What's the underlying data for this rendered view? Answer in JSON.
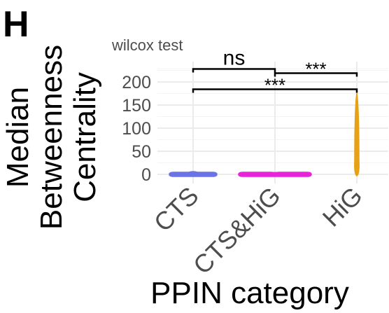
{
  "panel_label": "H",
  "chart_data": {
    "type": "violin",
    "subtitle": "wilcox test",
    "xlabel": "PPIN category",
    "ylabel_lines": [
      "Median",
      "Betweenness",
      "Centrality"
    ],
    "categories": [
      "CTS",
      "CTS&HiG",
      "HiG"
    ],
    "y_ticks": [
      0,
      50,
      100,
      150,
      200
    ],
    "ylim": [
      -8,
      235
    ],
    "grid": true,
    "series": [
      {
        "category": "CTS",
        "color": "#6b73e6",
        "min": 0,
        "max": 3,
        "median": 0
      },
      {
        "category": "CTS&HiG",
        "color": "#e624d9",
        "min": 0,
        "max": 1,
        "median": 0
      },
      {
        "category": "HiG",
        "color": "#e6a117",
        "min": 0,
        "max": 176,
        "median": 2
      }
    ],
    "significance": [
      {
        "group1": "CTS",
        "group2": "CTS&HiG",
        "label": "ns",
        "y": 228
      },
      {
        "group1": "CTS&HiG",
        "group2": "HiG",
        "label": "***",
        "y": 219
      },
      {
        "group1": "CTS",
        "group2": "HiG",
        "label": "***",
        "y": 184
      }
    ]
  }
}
